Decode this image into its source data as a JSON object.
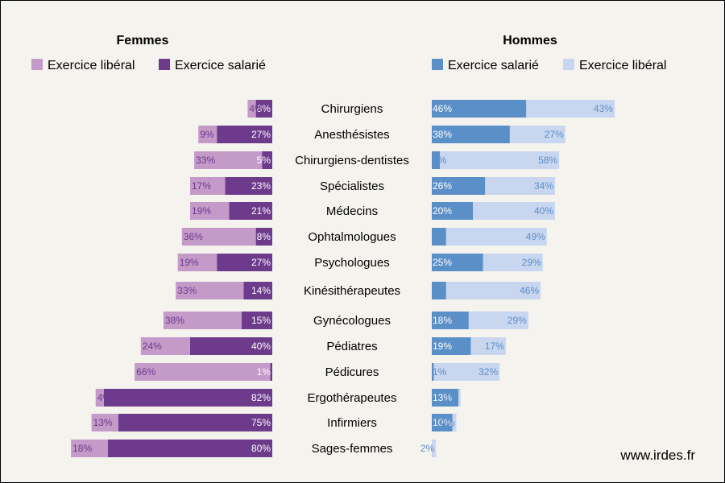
{
  "chart_data": {
    "type": "bar",
    "panels": {
      "left": {
        "title": "Femmes",
        "series": [
          {
            "name": "Exercice libéral",
            "color": "#c49ac9"
          },
          {
            "name": "Exercice salarié",
            "color": "#6d3a8c"
          }
        ]
      },
      "right": {
        "title": "Hommes",
        "series": [
          {
            "name": "Exercice salarié",
            "color": "#5b8fc8"
          },
          {
            "name": "Exercice libéral",
            "color": "#c9d6ef"
          }
        ]
      }
    },
    "rows": [
      {
        "category": "Chirurgiens",
        "f_lib": 4,
        "f_sal": 8,
        "h_sal": 46,
        "h_lib": 43
      },
      {
        "category": "Anesthésistes",
        "f_lib": 9,
        "f_sal": 27,
        "h_sal": 38,
        "h_lib": 27
      },
      {
        "category": "Chirurgiens-dentistes",
        "f_lib": 33,
        "f_sal": 5,
        "h_sal": 4,
        "h_lib": 58
      },
      {
        "category": "Spécialistes",
        "f_lib": 17,
        "f_sal": 23,
        "h_sal": 26,
        "h_lib": 34
      },
      {
        "category": "Médecins",
        "f_lib": 19,
        "f_sal": 21,
        "h_sal": 20,
        "h_lib": 40
      },
      {
        "category": "Ophtalmologues",
        "f_lib": 36,
        "f_sal": 8,
        "h_sal": 7,
        "h_lib": 49
      },
      {
        "category": "Psychologues",
        "f_lib": 19,
        "f_sal": 27,
        "h_sal": 25,
        "h_lib": 29
      },
      {
        "category": "Kinésithérapeutes",
        "f_lib": 33,
        "f_sal": 14,
        "h_sal": 7,
        "h_lib": 46
      },
      {
        "category": "Gynécologues",
        "f_lib": 38,
        "f_sal": 15,
        "h_sal": 18,
        "h_lib": 29
      },
      {
        "category": "Pédiatres",
        "f_lib": 24,
        "f_sal": 40,
        "h_sal": 19,
        "h_lib": 17
      },
      {
        "category": "Pédicures",
        "f_lib": 66,
        "f_sal": 1,
        "h_sal": 1,
        "h_lib": 32
      },
      {
        "category": "Ergothérapeutes",
        "f_lib": 4,
        "f_sal": 82,
        "h_sal": 13,
        "h_lib": 1
      },
      {
        "category": "Infirmiers",
        "f_lib": 13,
        "f_sal": 75,
        "h_sal": 10,
        "h_lib": 2
      },
      {
        "category": "Sages-femmes",
        "f_lib": 18,
        "f_sal": 80,
        "h_sal": null,
        "h_lib": 2
      }
    ]
  },
  "footer": "www.irdes.fr"
}
